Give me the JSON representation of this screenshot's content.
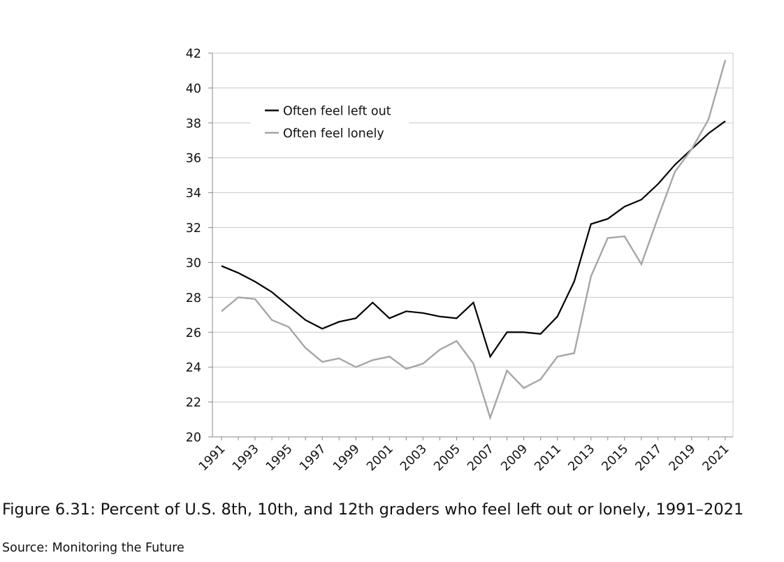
{
  "chart_data": {
    "type": "line",
    "title": "",
    "xlabel": "",
    "ylabel": "",
    "x": [
      1991,
      1992,
      1993,
      1994,
      1995,
      1996,
      1997,
      1998,
      1999,
      2000,
      2001,
      2002,
      2003,
      2004,
      2005,
      2006,
      2007,
      2008,
      2009,
      2010,
      2011,
      2012,
      2013,
      2014,
      2015,
      2016,
      2017,
      2018,
      2019,
      2020,
      2021
    ],
    "x_tick_labels": [
      "1991",
      "1993",
      "1995",
      "1997",
      "1999",
      "2001",
      "2003",
      "2005",
      "2007",
      "2009",
      "2011",
      "2013",
      "2015",
      "2017",
      "2019",
      "2021"
    ],
    "ylim": [
      20,
      42
    ],
    "y_ticks": [
      20,
      22,
      24,
      26,
      28,
      30,
      32,
      34,
      36,
      38,
      40,
      42
    ],
    "grid": true,
    "legend_position": "top-left",
    "series": [
      {
        "name": "Often feel left out",
        "color": "#000000",
        "values": [
          29.8,
          29.4,
          28.9,
          28.3,
          27.5,
          26.7,
          26.2,
          26.6,
          26.8,
          27.7,
          26.8,
          27.2,
          27.1,
          26.9,
          26.8,
          27.7,
          24.6,
          26.0,
          26.0,
          25.9,
          26.9,
          28.9,
          32.2,
          32.5,
          33.2,
          33.6,
          34.5,
          35.6,
          36.5,
          37.4,
          38.1
        ]
      },
      {
        "name": "Often feel lonely",
        "color": "#a6a6a6",
        "values": [
          27.2,
          28.0,
          27.9,
          26.7,
          26.3,
          25.1,
          24.3,
          24.5,
          24.0,
          24.4,
          24.6,
          23.9,
          24.2,
          25.0,
          25.5,
          24.2,
          21.1,
          23.8,
          22.8,
          23.3,
          24.6,
          24.8,
          29.2,
          31.4,
          31.5,
          29.9,
          32.6,
          35.2,
          36.5,
          38.2,
          41.6
        ]
      }
    ]
  },
  "caption": "Figure 6.31: Percent of U.S. 8th, 10th, and 12th graders who feel left out or lonely, 1991–2021",
  "source": "Source: Monitoring the Future"
}
